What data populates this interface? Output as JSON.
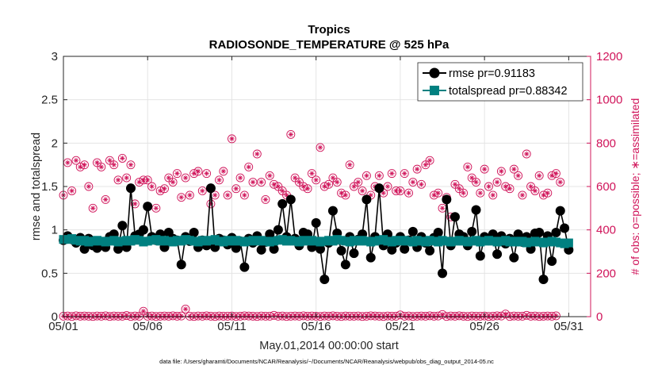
{
  "chart_data": {
    "type": "line",
    "title": "Tropics",
    "subtitle": "RADIOSONDE_TEMPERATURE @ 525 hPa",
    "xlabel": "May.01,2014 00:00:00 start",
    "ylabel": "rmse and totalspread",
    "ylabel_right": "# of obs: o=possible; ∗=assimilated",
    "footer": "data file: /Users/gharamti/Documents/NCAR/Reanalysis/~/Documents/NCAR/Reanalysis/webpub/obs_diag_output_2014-05.nc",
    "xlim": [
      0,
      31.3
    ],
    "ylim": [
      0,
      3
    ],
    "ylim_right": [
      0,
      1200
    ],
    "x_ticks": [
      0,
      5,
      10,
      15,
      20,
      25,
      30
    ],
    "x_ticklabels": [
      "05/01",
      "05/06",
      "05/11",
      "05/16",
      "05/21",
      "05/26",
      "05/31"
    ],
    "y_ticks": [
      0,
      0.5,
      1,
      1.5,
      2,
      2.5,
      3
    ],
    "y_ticklabels": [
      "0",
      "0.5",
      "1",
      "1.5",
      "2",
      "2.5",
      "3"
    ],
    "y_right_ticks": [
      0,
      200,
      400,
      600,
      800,
      1000,
      1200
    ],
    "y_right_ticklabels": [
      "0",
      "200",
      "400",
      "600",
      "800",
      "1000",
      "1200"
    ],
    "x_step_days": 0.25,
    "series": [
      {
        "name": "rmse pr=0.91183",
        "color": "#000000",
        "marker": "filled-circle",
        "axis": "left",
        "values": [
          0.88,
          0.93,
          0.89,
          0.85,
          0.91,
          0.78,
          0.9,
          0.82,
          0.79,
          0.85,
          0.8,
          0.92,
          0.95,
          0.78,
          1.05,
          0.8,
          1.48,
          0.93,
          0.95,
          1.0,
          1.27,
          0.92,
          0.88,
          0.95,
          0.8,
          0.97,
          0.9,
          0.88,
          0.6,
          0.92,
          0.87,
          0.97,
          0.8,
          0.88,
          0.82,
          1.48,
          0.8,
          0.9,
          0.88,
          0.83,
          0.91,
          0.79,
          0.87,
          0.57,
          0.9,
          0.85,
          0.93,
          0.77,
          0.86,
          0.95,
          0.78,
          1.0,
          1.3,
          0.92,
          1.35,
          0.9,
          0.82,
          0.97,
          0.95,
          0.8,
          1.08,
          0.78,
          0.43,
          0.85,
          1.22,
          0.96,
          0.76,
          0.6,
          0.92,
          0.73,
          0.89,
          0.95,
          1.35,
          0.68,
          0.92,
          1.48,
          0.82,
          0.95,
          0.77,
          0.85,
          0.92,
          0.78,
          0.88,
          0.98,
          0.8,
          0.92,
          0.85,
          0.76,
          0.91,
          0.97,
          0.5,
          1.35,
          0.82,
          1.15,
          0.95,
          0.92,
          0.82,
          0.98,
          1.23,
          0.7,
          0.92,
          0.88,
          0.95,
          0.72,
          0.93,
          0.84,
          0.9,
          0.68,
          0.95,
          0.86,
          0.92,
          0.78,
          0.96,
          0.97,
          0.43,
          0.93,
          0.64,
          0.97,
          1.22,
          1.02,
          0.77
        ]
      },
      {
        "name": "totalspread pr=0.88342",
        "color": "#008080",
        "marker": "filled-square",
        "axis": "left",
        "values": [
          0.89,
          0.89,
          0.9,
          0.88,
          0.87,
          0.88,
          0.86,
          0.87,
          0.88,
          0.87,
          0.86,
          0.87,
          0.88,
          0.86,
          0.87,
          0.88,
          0.87,
          0.89,
          0.88,
          0.86,
          0.87,
          0.88,
          0.89,
          0.87,
          0.88,
          0.87,
          0.86,
          0.88,
          0.87,
          0.89,
          0.88,
          0.87,
          0.86,
          0.88,
          0.87,
          0.88,
          0.89,
          0.87,
          0.86,
          0.88,
          0.87,
          0.88,
          0.87,
          0.86,
          0.87,
          0.88,
          0.87,
          0.88,
          0.87,
          0.86,
          0.87,
          0.88,
          0.89,
          0.87,
          0.88,
          0.87,
          0.86,
          0.88,
          0.87,
          0.88,
          0.87,
          0.86,
          0.87,
          0.88,
          0.87,
          0.89,
          0.88,
          0.87,
          0.86,
          0.88,
          0.87,
          0.88,
          0.87,
          0.86,
          0.87,
          0.88,
          0.89,
          0.87,
          0.86,
          0.88,
          0.87,
          0.88,
          0.87,
          0.86,
          0.88,
          0.87,
          0.86,
          0.88,
          0.87,
          0.86,
          0.88,
          0.87,
          0.86,
          0.87,
          0.88,
          0.87,
          0.86,
          0.87,
          0.88,
          0.86,
          0.87,
          0.88,
          0.87,
          0.86,
          0.87,
          0.88,
          0.86,
          0.87,
          0.86,
          0.87,
          0.85,
          0.86,
          0.87,
          0.86,
          0.85,
          0.86,
          0.87,
          0.86,
          0.85,
          0.84,
          0.85
        ]
      },
      {
        "name": "possible",
        "color": "#d0145a",
        "marker": "open-circle",
        "axis": "right",
        "values": [
          560,
          710,
          580,
          720,
          690,
          700,
          600,
          500,
          710,
          690,
          540,
          720,
          700,
          630,
          730,
          640,
          700,
          520,
          620,
          630,
          630,
          600,
          500,
          580,
          590,
          640,
          620,
          660,
          550,
          640,
          560,
          660,
          670,
          580,
          660,
          520,
          560,
          630,
          670,
          560,
          820,
          590,
          640,
          560,
          690,
          620,
          750,
          620,
          540,
          650,
          610,
          600,
          580,
          560,
          840,
          640,
          620,
          600,
          590,
          660,
          630,
          780,
          600,
          610,
          640,
          620,
          570,
          560,
          700,
          600,
          620,
          580,
          650,
          560,
          600,
          650,
          570,
          600,
          660,
          580,
          580,
          660,
          570,
          620,
          680,
          610,
          700,
          720,
          560,
          570,
          500,
          550,
          460,
          610,
          590,
          570,
          690,
          640,
          620,
          570,
          680,
          600,
          560,
          620,
          670,
          600,
          590,
          680,
          650,
          560,
          750,
          600,
          580,
          650,
          560,
          570,
          650,
          660,
          620
        ]
      },
      {
        "name": "assimilated",
        "color": "#d0145a",
        "marker": "star",
        "axis": "right",
        "values": [
          560,
          710,
          580,
          720,
          690,
          700,
          600,
          500,
          710,
          690,
          540,
          720,
          700,
          630,
          730,
          640,
          700,
          520,
          620,
          630,
          630,
          600,
          500,
          580,
          590,
          640,
          620,
          660,
          550,
          640,
          560,
          660,
          670,
          580,
          660,
          520,
          560,
          630,
          670,
          560,
          820,
          590,
          640,
          560,
          690,
          620,
          750,
          620,
          540,
          650,
          610,
          600,
          580,
          560,
          840,
          640,
          620,
          600,
          590,
          660,
          630,
          780,
          600,
          610,
          640,
          620,
          570,
          560,
          700,
          600,
          620,
          580,
          650,
          560,
          600,
          650,
          570,
          600,
          660,
          580,
          580,
          660,
          570,
          620,
          680,
          610,
          700,
          720,
          560,
          570,
          500,
          550,
          460,
          610,
          590,
          570,
          690,
          640,
          620,
          570,
          680,
          600,
          560,
          620,
          670,
          600,
          590,
          680,
          650,
          560,
          750,
          600,
          580,
          650,
          560,
          570,
          650,
          660,
          620
        ]
      },
      {
        "name": "possible (low)",
        "color": "#d0145a",
        "marker": "open-circle",
        "axis": "right",
        "values": [
          2,
          3,
          1,
          4,
          2,
          3,
          2,
          1,
          3,
          2,
          4,
          1,
          3,
          2,
          2,
          5,
          1,
          3,
          2,
          25,
          2,
          3,
          1,
          2,
          3,
          2,
          4,
          2,
          3,
          35,
          2,
          1,
          3,
          2,
          4,
          2,
          1,
          3,
          2,
          2,
          3,
          1,
          2,
          4,
          3,
          2,
          1,
          3,
          2,
          2,
          6,
          2,
          3,
          1,
          2,
          3,
          2,
          4,
          2,
          3,
          2,
          1,
          3,
          2,
          4,
          2,
          1,
          3,
          2,
          2,
          3,
          1,
          2,
          4,
          3,
          2,
          1,
          3,
          2,
          2,
          8,
          2,
          3,
          1,
          2,
          3,
          2,
          4,
          2,
          3,
          10,
          1,
          3,
          2,
          4,
          2,
          1,
          3,
          2,
          2,
          3,
          1,
          2,
          4,
          3,
          12,
          1,
          3,
          2,
          2,
          6,
          2,
          3,
          1,
          2,
          3,
          2,
          4
        ]
      },
      {
        "name": "assimilated (low)",
        "color": "#d0145a",
        "marker": "star",
        "axis": "right",
        "values": [
          2,
          3,
          1,
          4,
          2,
          3,
          2,
          1,
          3,
          2,
          4,
          1,
          3,
          2,
          2,
          5,
          1,
          3,
          2,
          25,
          2,
          3,
          1,
          2,
          3,
          2,
          4,
          2,
          3,
          35,
          2,
          1,
          3,
          2,
          4,
          2,
          1,
          3,
          2,
          2,
          3,
          1,
          2,
          4,
          3,
          2,
          1,
          3,
          2,
          2,
          6,
          2,
          3,
          1,
          2,
          3,
          2,
          4,
          2,
          3,
          2,
          1,
          3,
          2,
          4,
          2,
          1,
          3,
          2,
          2,
          3,
          1,
          2,
          4,
          3,
          2,
          1,
          3,
          2,
          2,
          8,
          2,
          3,
          1,
          2,
          3,
          2,
          4,
          2,
          3,
          10,
          1,
          3,
          2,
          4,
          2,
          1,
          3,
          2,
          2,
          3,
          1,
          2,
          4,
          3,
          12,
          1,
          3,
          2,
          2,
          6,
          2,
          3,
          1,
          2,
          3,
          2,
          4
        ]
      }
    ],
    "legend": {
      "position": "top-right",
      "entries": [
        "rmse pr=0.91183",
        "totalspread pr=0.88342"
      ]
    }
  }
}
